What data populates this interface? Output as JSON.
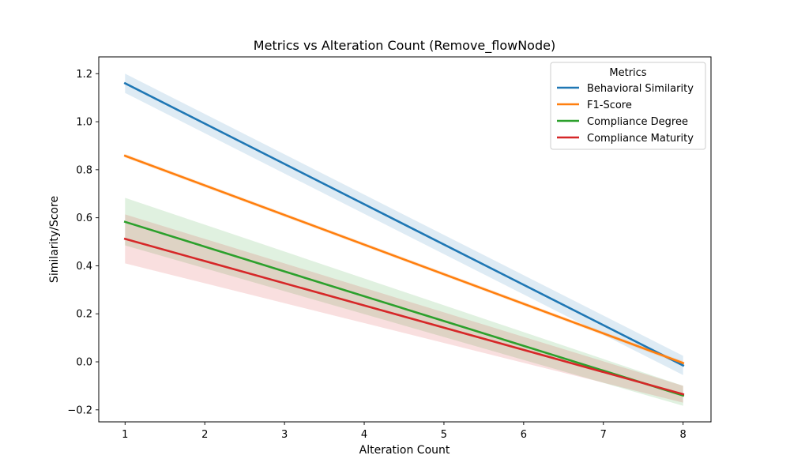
{
  "chart_data": {
    "type": "line",
    "title": "Metrics vs Alteration Count (Remove_flowNode)",
    "xlabel": "Alteration Count",
    "ylabel": "Similarity/Score",
    "xlim": [
      0.67,
      8.35
    ],
    "ylim": [
      -0.25,
      1.27
    ],
    "xticks": [
      1,
      2,
      3,
      4,
      5,
      6,
      7,
      8
    ],
    "yticks": [
      -0.2,
      0.0,
      0.2,
      0.4,
      0.6,
      0.8,
      1.0,
      1.2
    ],
    "ytick_labels": [
      "−0.2",
      "0.0",
      "0.2",
      "0.4",
      "0.6",
      "0.8",
      "1.0",
      "1.2"
    ],
    "legend": {
      "title": "Metrics",
      "placement": "top-right"
    },
    "series": [
      {
        "name": "Behavioral Similarity",
        "color": "#1f77b4",
        "x": [
          1,
          8
        ],
        "y": [
          1.16,
          -0.015
        ],
        "ci_lower": [
          1.12,
          -0.055
        ],
        "ci_upper": [
          1.2,
          0.025
        ]
      },
      {
        "name": "F1-Score",
        "color": "#ff7f0e",
        "x": [
          1,
          8
        ],
        "y": [
          0.858,
          -0.005
        ],
        "ci_lower": [
          0.85,
          -0.013
        ],
        "ci_upper": [
          0.866,
          0.003
        ]
      },
      {
        "name": "Compliance Degree",
        "color": "#2ca02c",
        "x": [
          1,
          8
        ],
        "y": [
          0.583,
          -0.14
        ],
        "ci_lower": [
          0.485,
          -0.183
        ],
        "ci_upper": [
          0.683,
          -0.1
        ]
      },
      {
        "name": "Compliance Maturity",
        "color": "#d62728",
        "x": [
          1,
          8
        ],
        "y": [
          0.512,
          -0.135
        ],
        "ci_lower": [
          0.41,
          -0.17
        ],
        "ci_upper": [
          0.614,
          -0.1
        ]
      }
    ]
  }
}
